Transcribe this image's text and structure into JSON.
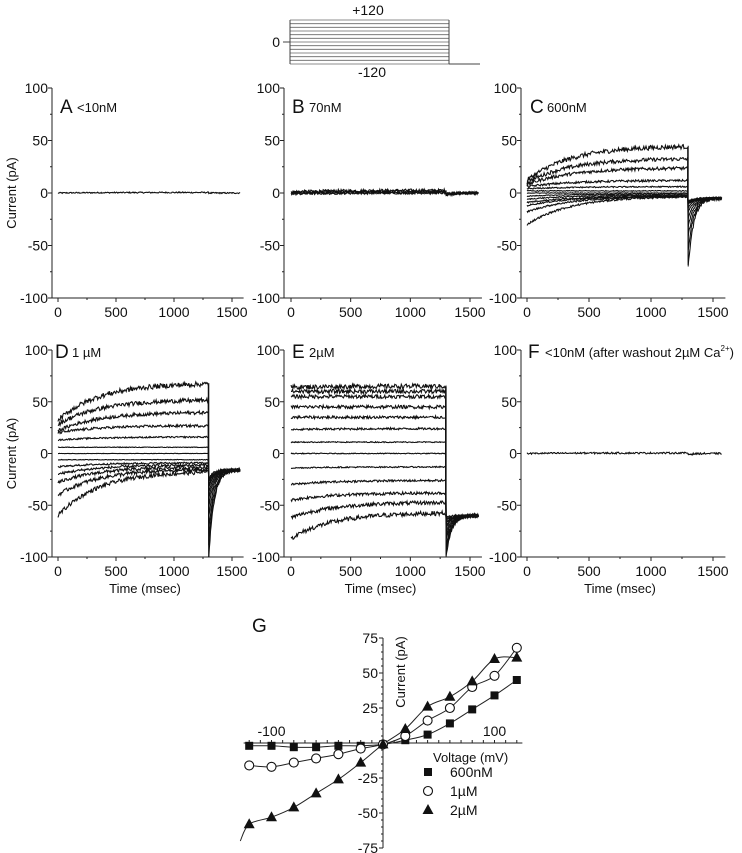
{
  "protocol": {
    "top_label": "+120",
    "bottom_label": "-120",
    "zero_label": "0",
    "steps_mV": [
      -120,
      -100,
      -80,
      -60,
      -40,
      -20,
      0,
      20,
      40,
      60,
      80,
      100,
      120
    ],
    "step_duration_msec": 1300,
    "total_duration_msec": 1600
  },
  "chart_data": [
    {
      "type": "line",
      "panel": "A",
      "label": "A",
      "condition": "<10nM",
      "xlabel": "",
      "ylabel": "Current (pA)",
      "xlim": [
        0,
        1600
      ],
      "ylim": [
        -100,
        100
      ],
      "xticks": [
        "0",
        "500",
        "1000",
        "1500"
      ],
      "yticks": [
        "100",
        "50",
        "0",
        "-50",
        "-100"
      ],
      "step_end_msec": 1300,
      "series": [
        {
          "name": "all steps",
          "start_pA": 0,
          "steady_pA": 0.5,
          "tail_pA": 0,
          "noise": 0.6
        }
      ]
    },
    {
      "type": "line",
      "panel": "B",
      "label": "B",
      "condition": "70nM",
      "xlabel": "",
      "ylabel": "",
      "xlim": [
        0,
        1600
      ],
      "ylim": [
        -100,
        100
      ],
      "xticks": [
        "0",
        "500",
        "1000",
        "1500"
      ],
      "yticks": [
        "100",
        "50",
        "0",
        "-50",
        "-100"
      ],
      "step_end_msec": 1300,
      "series": [
        {
          "name": "+120",
          "start_pA": 1,
          "steady_pA": 2.5,
          "tail_pA": -2,
          "noise": 1.4
        },
        {
          "name": "+60",
          "start_pA": 0.5,
          "steady_pA": 1.5,
          "tail_pA": -1.5,
          "noise": 1.2
        },
        {
          "name": "0",
          "start_pA": 0,
          "steady_pA": 0.5,
          "tail_pA": -1,
          "noise": 1.0
        },
        {
          "name": "-120",
          "start_pA": -1,
          "steady_pA": 0,
          "tail_pA": -1,
          "noise": 1.0
        }
      ]
    },
    {
      "type": "line",
      "panel": "C",
      "label": "C",
      "condition": "600nM",
      "xlabel": "",
      "ylabel": "",
      "xlim": [
        0,
        1600
      ],
      "ylim": [
        -100,
        100
      ],
      "xticks": [
        "0",
        "500",
        "1000",
        "1500"
      ],
      "yticks": [
        "100",
        "50",
        "0",
        "-50",
        "-100"
      ],
      "step_end_msec": 1300,
      "series": [
        {
          "name": "+120",
          "start_pA": 12,
          "steady_pA": 45,
          "tail_pA": -70,
          "noise": 2.2
        },
        {
          "name": "+100",
          "start_pA": 10,
          "steady_pA": 33,
          "tail_pA": -55,
          "noise": 1.8
        },
        {
          "name": "+80",
          "start_pA": 8,
          "steady_pA": 24,
          "tail_pA": -42,
          "noise": 1.5
        },
        {
          "name": "+60",
          "start_pA": 6,
          "steady_pA": 12,
          "tail_pA": -32,
          "noise": 1.0
        },
        {
          "name": "+40",
          "start_pA": 4,
          "steady_pA": 6,
          "tail_pA": -24,
          "noise": 0.6
        },
        {
          "name": "+20",
          "start_pA": 2,
          "steady_pA": 2,
          "tail_pA": -18,
          "noise": 0.4
        },
        {
          "name": "0",
          "start_pA": 0,
          "steady_pA": 0,
          "tail_pA": -14,
          "noise": 0.3
        },
        {
          "name": "-20",
          "start_pA": -3,
          "steady_pA": -1,
          "tail_pA": -11,
          "noise": 0.4
        },
        {
          "name": "-40",
          "start_pA": -6,
          "steady_pA": -2,
          "tail_pA": -10,
          "noise": 0.5
        },
        {
          "name": "-60",
          "start_pA": -9,
          "steady_pA": -3,
          "tail_pA": -9,
          "noise": 0.6
        },
        {
          "name": "-80",
          "start_pA": -12,
          "steady_pA": -3,
          "tail_pA": -8,
          "noise": 0.7
        },
        {
          "name": "-100",
          "start_pA": -18,
          "steady_pA": -3,
          "tail_pA": -8,
          "noise": 0.8
        },
        {
          "name": "-120",
          "start_pA": -30,
          "steady_pA": -3,
          "tail_pA": -8,
          "noise": 0.9
        }
      ]
    },
    {
      "type": "line",
      "panel": "D",
      "label": "D",
      "condition": "1 µM",
      "xlabel": "Time (msec)",
      "ylabel": "Current (pA)",
      "xlim": [
        0,
        1600
      ],
      "ylim": [
        -100,
        100
      ],
      "xticks": [
        "0",
        "500",
        "1000",
        "1500"
      ],
      "yticks": [
        "100",
        "50",
        "0",
        "-50",
        "-100"
      ],
      "step_end_msec": 1300,
      "series": [
        {
          "name": "+120",
          "start_pA": 32,
          "steady_pA": 68,
          "tail_pA": -100,
          "noise": 2.4
        },
        {
          "name": "+100",
          "start_pA": 28,
          "steady_pA": 52,
          "tail_pA": -88,
          "noise": 2.0
        },
        {
          "name": "+80",
          "start_pA": 22,
          "steady_pA": 40,
          "tail_pA": -75,
          "noise": 1.6
        },
        {
          "name": "+60",
          "start_pA": 20,
          "steady_pA": 27,
          "tail_pA": -62,
          "noise": 1.2
        },
        {
          "name": "+40",
          "start_pA": 13,
          "steady_pA": 16,
          "tail_pA": -52,
          "noise": 0.7
        },
        {
          "name": "+20",
          "start_pA": 6,
          "steady_pA": 6,
          "tail_pA": -44,
          "noise": 0.3
        },
        {
          "name": "0",
          "start_pA": 0,
          "steady_pA": 0,
          "tail_pA": -38,
          "noise": 0.2
        },
        {
          "name": "-20",
          "start_pA": -6,
          "steady_pA": -6,
          "tail_pA": -33,
          "noise": 0.3
        },
        {
          "name": "-40",
          "start_pA": -13,
          "steady_pA": -9,
          "tail_pA": -30,
          "noise": 0.8
        },
        {
          "name": "-60",
          "start_pA": -20,
          "steady_pA": -11,
          "tail_pA": -28,
          "noise": 1.2
        },
        {
          "name": "-80",
          "start_pA": -28,
          "steady_pA": -13,
          "tail_pA": -26,
          "noise": 1.5
        },
        {
          "name": "-100",
          "start_pA": -40,
          "steady_pA": -15,
          "tail_pA": -25,
          "noise": 1.8
        },
        {
          "name": "-120",
          "start_pA": -60,
          "steady_pA": -17,
          "tail_pA": -24,
          "noise": 2.0
        }
      ]
    },
    {
      "type": "line",
      "panel": "E",
      "label": "E",
      "condition": "2µM",
      "xlabel": "Time (msec)",
      "ylabel": "",
      "xlim": [
        0,
        1600
      ],
      "ylim": [
        -100,
        100
      ],
      "xticks": [
        "0",
        "500",
        "1000",
        "1500"
      ],
      "yticks": [
        "100",
        "50",
        "0",
        "-50",
        "-100"
      ],
      "step_end_msec": 1300,
      "series": [
        {
          "name": "+120",
          "start_pA": 64,
          "steady_pA": 65,
          "tail_pA": -100,
          "noise": 2.2
        },
        {
          "name": "+100",
          "start_pA": 60,
          "steady_pA": 60,
          "tail_pA": -96,
          "noise": 2.0
        },
        {
          "name": "+80",
          "start_pA": 55,
          "steady_pA": 55,
          "tail_pA": -92,
          "noise": 1.8
        },
        {
          "name": "+60",
          "start_pA": 45,
          "steady_pA": 45,
          "tail_pA": -88,
          "noise": 1.6
        },
        {
          "name": "+40",
          "start_pA": 35,
          "steady_pA": 35,
          "tail_pA": -84,
          "noise": 1.3
        },
        {
          "name": "+20",
          "start_pA": 23,
          "steady_pA": 24,
          "tail_pA": -80,
          "noise": 1.0
        },
        {
          "name": "0",
          "start_pA": 11,
          "steady_pA": 11,
          "tail_pA": -76,
          "noise": 0.5
        },
        {
          "name": "-20",
          "start_pA": 0,
          "steady_pA": 0,
          "tail_pA": -72,
          "noise": 0.4
        },
        {
          "name": "-40",
          "start_pA": -14,
          "steady_pA": -13,
          "tail_pA": -70,
          "noise": 0.6
        },
        {
          "name": "-60",
          "start_pA": -30,
          "steady_pA": -26,
          "tail_pA": -68,
          "noise": 1.0
        },
        {
          "name": "-80",
          "start_pA": -45,
          "steady_pA": -38,
          "tail_pA": -66,
          "noise": 1.4
        },
        {
          "name": "-100",
          "start_pA": -62,
          "steady_pA": -47,
          "tail_pA": -64,
          "noise": 1.8
        },
        {
          "name": "-120",
          "start_pA": -82,
          "steady_pA": -57,
          "tail_pA": -62,
          "noise": 2.2
        }
      ]
    },
    {
      "type": "line",
      "panel": "F",
      "label": "F",
      "condition": "<10nM (after washout 2µM Ca",
      "condition_sup": "2+",
      "condition_end": ")",
      "xlabel": "Time (msec)",
      "ylabel": "",
      "xlim": [
        0,
        1600
      ],
      "ylim": [
        -100,
        100
      ],
      "xticks": [
        "0",
        "500",
        "1000",
        "1500"
      ],
      "yticks": [
        "100",
        "50",
        "0",
        "-50",
        "-100"
      ],
      "step_end_msec": 1300,
      "series": [
        {
          "name": "all steps",
          "start_pA": 0,
          "steady_pA": 0.5,
          "tail_pA": -1,
          "noise": 0.8
        }
      ]
    },
    {
      "type": "scatter",
      "panel": "G",
      "label": "G",
      "title": "",
      "xlabel": "Voltage (mV)",
      "ylabel": "Current (pA)",
      "xlim": [
        -125,
        125
      ],
      "ylim": [
        -75,
        75
      ],
      "xticks": [
        "-100",
        "100"
      ],
      "yticks": [
        "75",
        "50",
        "25",
        "-25",
        "-50",
        "-75"
      ],
      "legend_position": "bottom-right",
      "x": [
        -120,
        -100,
        -80,
        -60,
        -40,
        -20,
        0,
        20,
        40,
        60,
        80,
        100,
        120
      ],
      "series": [
        {
          "name": "600nM",
          "marker": "filled-square",
          "values": [
            -2,
            -2,
            -3,
            -3,
            -2,
            -2,
            -1,
            2,
            6,
            14,
            24,
            34,
            45
          ]
        },
        {
          "name": "1µM",
          "marker": "open-circle",
          "values": [
            -16,
            -17,
            -14,
            -11,
            -8,
            -4,
            -1,
            5,
            16,
            25,
            40,
            48,
            68
          ]
        },
        {
          "name": "2µM",
          "marker": "filled-triangle",
          "values": [
            -58,
            -53,
            -46,
            -36,
            -26,
            -14,
            -1,
            10,
            26,
            33,
            44,
            60,
            61
          ]
        }
      ]
    }
  ]
}
